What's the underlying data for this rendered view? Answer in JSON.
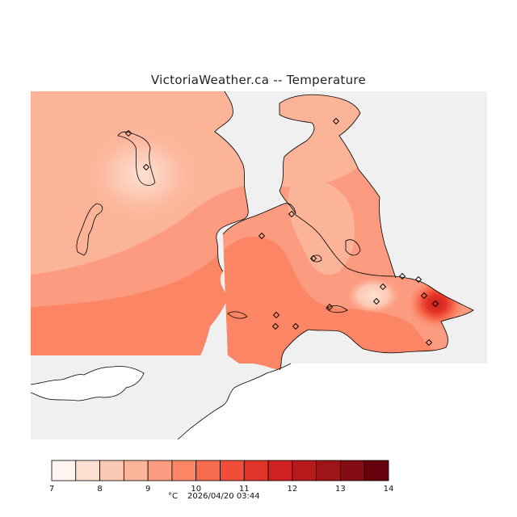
{
  "title": "VictoriaWeather.ca  --  Temperature",
  "legend": {
    "unit": "°C",
    "timestamp": "2026/04/20 03:44",
    "min": 7,
    "max": 14,
    "step": 0.5,
    "tick_labels": [
      "7",
      "8",
      "9",
      "10",
      "11",
      "12",
      "13",
      "14"
    ],
    "colors": [
      "#fff5f0",
      "#fee0d2",
      "#fcc9b4",
      "#fcb499",
      "#fc9b7f",
      "#fb8565",
      "#f96b4f",
      "#f14e3a",
      "#e23328",
      "#cf2022",
      "#b71a1d",
      "#9f1419",
      "#840c14",
      "#67000d"
    ]
  },
  "colors": {
    "no_data": "#f0f0f0",
    "background": "#ffffff",
    "station_marker": "#000000"
  },
  "stations": [
    {
      "name": "station",
      "temp": 8.0
    },
    {
      "name": "station",
      "temp": 7.8
    },
    {
      "name": "station",
      "temp": 9.4
    },
    {
      "name": "station",
      "temp": 9.3
    },
    {
      "name": "station",
      "temp": 10.0
    },
    {
      "name": "station",
      "temp": 10.3
    },
    {
      "name": "station",
      "temp": 10.1
    },
    {
      "name": "station",
      "temp": 9.8
    },
    {
      "name": "station",
      "temp": 10.0
    },
    {
      "name": "station",
      "temp": 9.9
    },
    {
      "name": "station",
      "temp": 8.3
    },
    {
      "name": "station",
      "temp": 9.6
    },
    {
      "name": "station",
      "temp": 10.2
    },
    {
      "name": "station",
      "temp": 9.7
    },
    {
      "name": "station",
      "temp": 11.0
    },
    {
      "name": "station",
      "temp": 13.3
    },
    {
      "name": "station",
      "temp": 10.3
    }
  ]
}
